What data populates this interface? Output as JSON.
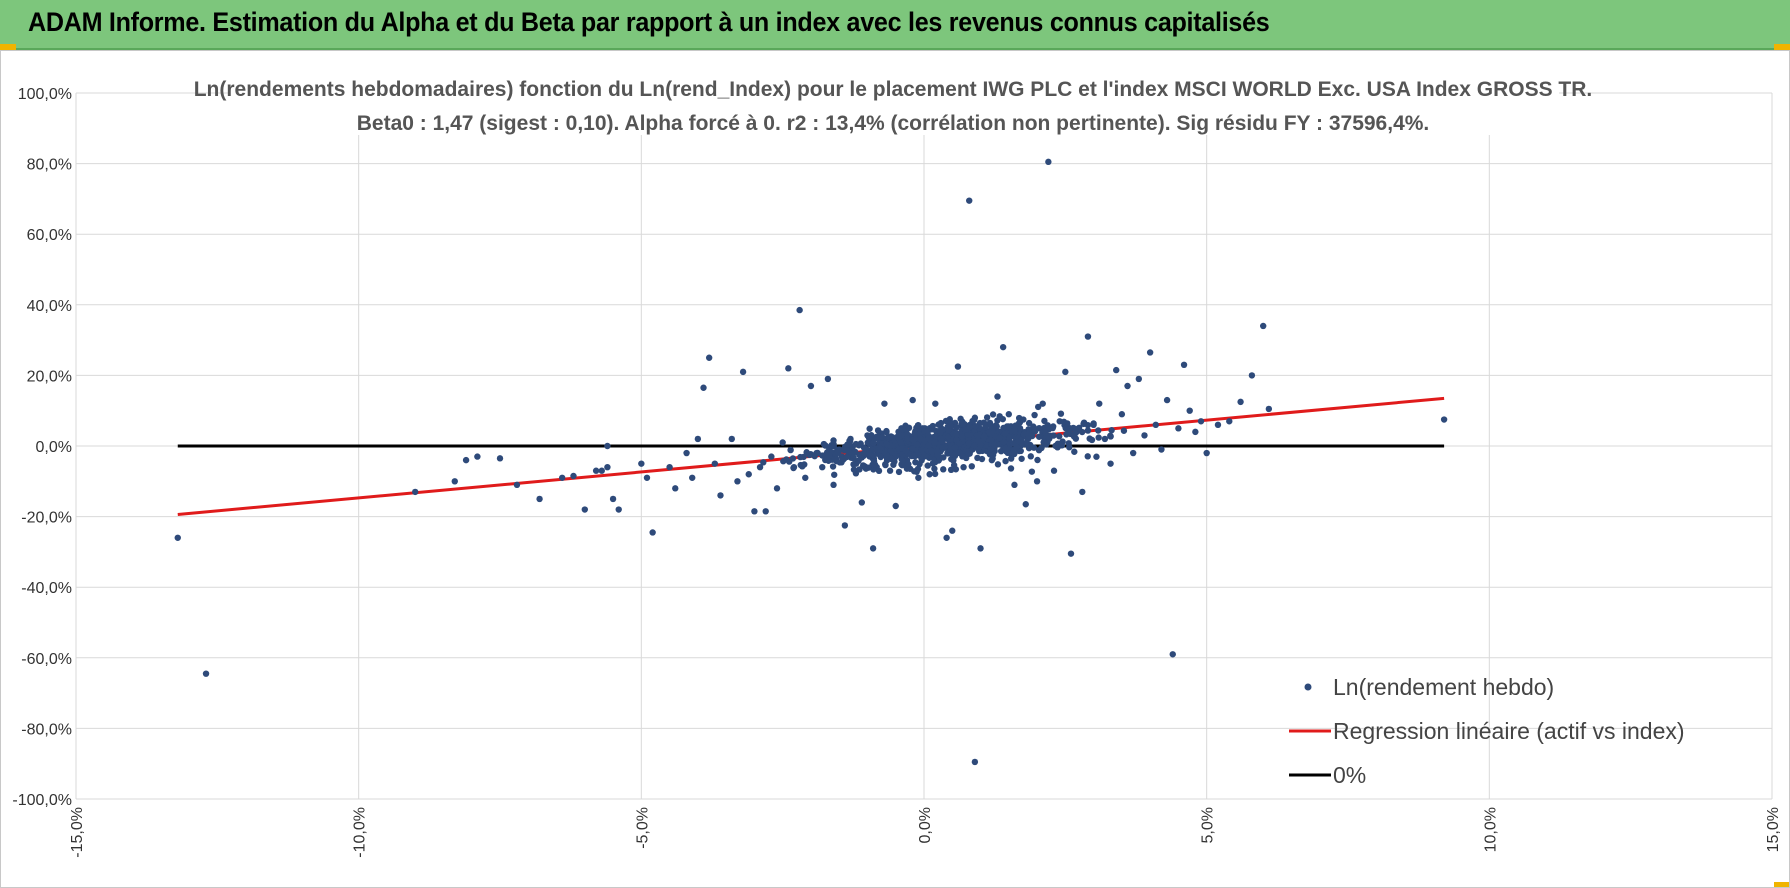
{
  "header": {
    "title": "ADAM Informe. Estimation du Alpha et du Beta par rapport à un index avec les revenus connus capitalisés",
    "background": "#7dc67c"
  },
  "chart_data": {
    "type": "scatter",
    "title": "Ln(rendements hebdomadaires) fonction du Ln(rend_Index) pour le placement IWG PLC et l'index MSCI WORLD Exc. USA Index GROSS TR.",
    "subtitle": "Beta0 : 1,47 (sigest : 0,10). Alpha forcé à 0. r2 : 13,4% (corrélation non pertinente). Sig résidu FY : 37596,4%.",
    "xlabel": "",
    "ylabel": "",
    "xlim": [
      -0.15,
      0.15
    ],
    "ylim": [
      -1.0,
      1.0
    ],
    "x_ticks": [
      -0.15,
      -0.1,
      -0.05,
      0.0,
      0.05,
      0.1,
      0.15
    ],
    "x_tick_labels": [
      "-15,0%",
      "-10,0%",
      "-5,0%",
      "0,0%",
      "5,0%",
      "10,0%",
      "15,0%"
    ],
    "y_ticks": [
      1.0,
      0.8,
      0.6,
      0.4,
      0.2,
      0.0,
      -0.2,
      -0.4,
      -0.6,
      -0.8,
      -1.0
    ],
    "y_tick_labels": [
      "100,0%",
      "80,0%",
      "60,0%",
      "40,0%",
      "20,0%",
      "0,0%",
      "-20,0%",
      "-40,0%",
      "-60,0%",
      "-80,0%",
      "-100,0%"
    ],
    "grid": true,
    "legend_position": "bottom-right",
    "legend": [
      {
        "label": "Ln(rendement hebdo)",
        "kind": "marker",
        "color": "#2e4a7a"
      },
      {
        "label": "Regression linéaire (actif vs index)",
        "kind": "line",
        "color": "#e01b1b"
      },
      {
        "label": "0%",
        "kind": "line",
        "color": "#000000"
      }
    ],
    "series": [
      {
        "name": "Ln(rendement hebdo)",
        "kind": "scatter",
        "color": "#2e4a7a",
        "points": [
          [
            -0.132,
            -0.26
          ],
          [
            -0.127,
            -0.645
          ],
          [
            -0.09,
            -0.13
          ],
          [
            -0.083,
            -0.1
          ],
          [
            -0.081,
            -0.04
          ],
          [
            -0.079,
            -0.03
          ],
          [
            -0.075,
            -0.035
          ],
          [
            -0.072,
            -0.11
          ],
          [
            -0.068,
            -0.15
          ],
          [
            -0.064,
            -0.09
          ],
          [
            -0.062,
            -0.085
          ],
          [
            -0.06,
            -0.18
          ],
          [
            -0.058,
            -0.07
          ],
          [
            -0.057,
            -0.07
          ],
          [
            -0.056,
            -0.06
          ],
          [
            -0.056,
            0.0
          ],
          [
            -0.055,
            -0.15
          ],
          [
            -0.054,
            -0.18
          ],
          [
            -0.05,
            -0.05
          ],
          [
            -0.049,
            -0.09
          ],
          [
            -0.048,
            -0.245
          ],
          [
            -0.045,
            -0.06
          ],
          [
            -0.044,
            -0.12
          ],
          [
            -0.042,
            -0.02
          ],
          [
            -0.041,
            -0.09
          ],
          [
            -0.04,
            0.02
          ],
          [
            -0.039,
            0.165
          ],
          [
            -0.038,
            0.25
          ],
          [
            -0.037,
            -0.05
          ],
          [
            -0.036,
            -0.14
          ],
          [
            -0.034,
            0.02
          ],
          [
            -0.033,
            -0.1
          ],
          [
            -0.032,
            0.21
          ],
          [
            -0.031,
            -0.08
          ],
          [
            -0.03,
            -0.185
          ],
          [
            -0.029,
            -0.06
          ],
          [
            -0.028,
            -0.185
          ],
          [
            -0.027,
            -0.03
          ],
          [
            -0.026,
            -0.12
          ],
          [
            -0.025,
            0.01
          ],
          [
            -0.024,
            0.22
          ],
          [
            -0.023,
            -0.06
          ],
          [
            -0.022,
            0.385
          ],
          [
            -0.021,
            -0.09
          ],
          [
            -0.02,
            0.17
          ],
          [
            -0.019,
            -0.02
          ],
          [
            -0.018,
            -0.06
          ],
          [
            -0.017,
            0.19
          ],
          [
            -0.016,
            -0.11
          ],
          [
            -0.015,
            -0.01
          ],
          [
            -0.014,
            -0.225
          ],
          [
            -0.013,
            0.02
          ],
          [
            -0.012,
            -0.05
          ],
          [
            -0.011,
            -0.16
          ],
          [
            -0.01,
            0.03
          ],
          [
            -0.009,
            -0.29
          ],
          [
            -0.008,
            -0.02
          ],
          [
            -0.007,
            0.12
          ],
          [
            -0.006,
            -0.07
          ],
          [
            -0.005,
            -0.17
          ],
          [
            -0.004,
            0.05
          ],
          [
            -0.003,
            -0.04
          ],
          [
            -0.002,
            0.13
          ],
          [
            -0.001,
            -0.09
          ],
          [
            0.0,
            0.02
          ],
          [
            0.001,
            -0.08
          ],
          [
            0.002,
            0.12
          ],
          [
            0.003,
            0.065
          ],
          [
            0.004,
            -0.26
          ],
          [
            0.005,
            -0.24
          ],
          [
            0.006,
            0.225
          ],
          [
            0.007,
            -0.06
          ],
          [
            0.008,
            0.695
          ],
          [
            0.009,
            -0.895
          ],
          [
            0.009,
            0.08
          ],
          [
            0.01,
            -0.29
          ],
          [
            0.011,
            0.06
          ],
          [
            0.012,
            -0.04
          ],
          [
            0.013,
            0.14
          ],
          [
            0.014,
            0.28
          ],
          [
            0.015,
            0.09
          ],
          [
            0.016,
            -0.11
          ],
          [
            0.017,
            0.05
          ],
          [
            0.018,
            -0.165
          ],
          [
            0.019,
            0.04
          ],
          [
            0.02,
            -0.1
          ],
          [
            0.021,
            0.12
          ],
          [
            0.022,
            0.805
          ],
          [
            0.023,
            -0.07
          ],
          [
            0.024,
            0.07
          ],
          [
            0.025,
            0.21
          ],
          [
            0.026,
            -0.305
          ],
          [
            0.027,
            0.04
          ],
          [
            0.028,
            -0.13
          ],
          [
            0.029,
            0.31
          ],
          [
            0.03,
            0.06
          ],
          [
            0.031,
            0.12
          ],
          [
            0.032,
            0.02
          ],
          [
            0.033,
            -0.05
          ],
          [
            0.034,
            0.215
          ],
          [
            0.035,
            0.09
          ],
          [
            0.036,
            0.17
          ],
          [
            0.037,
            -0.02
          ],
          [
            0.038,
            0.19
          ],
          [
            0.039,
            0.03
          ],
          [
            0.04,
            0.265
          ],
          [
            0.041,
            0.06
          ],
          [
            0.042,
            -0.01
          ],
          [
            0.043,
            0.13
          ],
          [
            0.044,
            -0.59
          ],
          [
            0.045,
            0.05
          ],
          [
            0.046,
            0.23
          ],
          [
            0.047,
            0.1
          ],
          [
            0.048,
            0.04
          ],
          [
            0.049,
            0.07
          ],
          [
            0.05,
            -0.02
          ],
          [
            0.052,
            0.06
          ],
          [
            0.054,
            0.07
          ],
          [
            0.056,
            0.125
          ],
          [
            0.058,
            0.2
          ],
          [
            0.06,
            0.34
          ],
          [
            0.061,
            0.105
          ],
          [
            0.092,
            0.075
          ]
        ]
      },
      {
        "name": "Regression linéaire (actif vs index)",
        "kind": "line",
        "color": "#e01b1b",
        "x": [
          -0.132,
          0.092
        ],
        "y": [
          -0.194,
          0.135
        ]
      },
      {
        "name": "0%",
        "kind": "line",
        "color": "#000000",
        "x": [
          -0.132,
          0.092
        ],
        "y": [
          0.0,
          0.0
        ]
      }
    ]
  }
}
